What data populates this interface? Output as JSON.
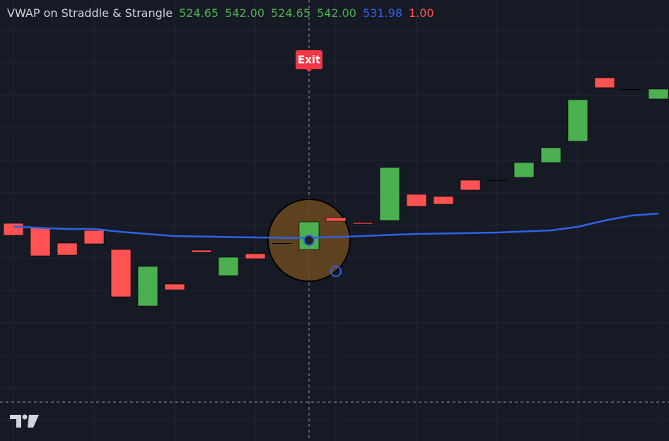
{
  "title": "VWAP on Straddle & Strangle",
  "legend_values": [
    {
      "value": 524.65,
      "label": "524.65"
    },
    {
      "value": 542,
      "label": "542.00"
    },
    {
      "value": 524.65,
      "label": "524.65"
    },
    {
      "value": 542,
      "label": "542.00"
    },
    {
      "value": 531.98,
      "label": "531.98"
    },
    {
      "value": 1,
      "label": "1.00"
    }
  ],
  "annotation": "Exit",
  "chart": {
    "type": "candlestick",
    "ylim": [
      404.05,
      681.73
    ],
    "up_color": "#4caf50",
    "down_color": "#ff5252",
    "flat_color": "#000000",
    "vwap_color": "#2f62e6",
    "open": [
      541.11,
      538.44,
      528.65,
      536.66,
      524.65,
      489.04,
      502.84,
      524.2,
      508.18,
      521.98,
      528.65,
      524.65,
      544.67,
      541.56,
      542.89,
      559.36,
      558.02,
      568.26,
      568.26,
      570.04,
      579.38,
      592.73,
      632.78,
      625.66,
      619.43
    ],
    "close": [
      533.55,
      520.64,
      521.09,
      528.21,
      494.83,
      513.97,
      499.28,
      522.87,
      519.75,
      518.86,
      528.65,
      542,
      542.45,
      540.67,
      576.27,
      551.79,
      553.13,
      562.03,
      568.26,
      579.38,
      588.73,
      618.99,
      626.55,
      625.66,
      625.66
    ],
    "vwap": [
      539.1,
      538.2,
      537.55,
      537.55,
      535.77,
      534.4,
      533.1,
      532.8,
      532.5,
      532.21,
      532.0,
      531.98,
      532.5,
      533.1,
      533.8,
      534.44,
      534.7,
      535.0,
      535.33,
      536.0,
      536.66,
      538.89,
      542.89,
      546.01,
      547.3
    ]
  }
}
